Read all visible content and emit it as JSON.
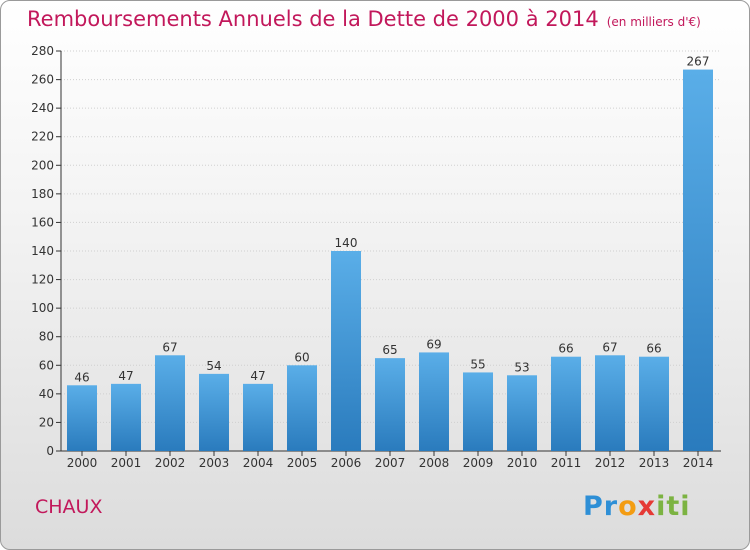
{
  "header": {
    "title": "Remboursements Annuels de la Dette de 2000 à 2014",
    "unit": "(en milliers d'€)"
  },
  "footer": {
    "commune": "CHAUX",
    "logo": "Proxiti"
  },
  "colors": {
    "bar_top": "#5aaee8",
    "bar_bottom": "#2a7bbd",
    "title": "#c2185b"
  },
  "chart_data": {
    "type": "bar",
    "title": "Remboursements Annuels de la Dette de 2000 à 2014",
    "xlabel": "",
    "ylabel": "",
    "categories": [
      "2000",
      "2001",
      "2002",
      "2003",
      "2004",
      "2005",
      "2006",
      "2007",
      "2008",
      "2009",
      "2010",
      "2011",
      "2012",
      "2013",
      "2014"
    ],
    "values": [
      46,
      47,
      67,
      54,
      47,
      60,
      140,
      65,
      69,
      55,
      53,
      66,
      67,
      66,
      267
    ],
    "ylim": [
      0,
      280
    ],
    "yticks": [
      0,
      20,
      40,
      60,
      80,
      100,
      120,
      140,
      160,
      180,
      200,
      220,
      240,
      260,
      280
    ],
    "grid": true,
    "legend": "none"
  }
}
